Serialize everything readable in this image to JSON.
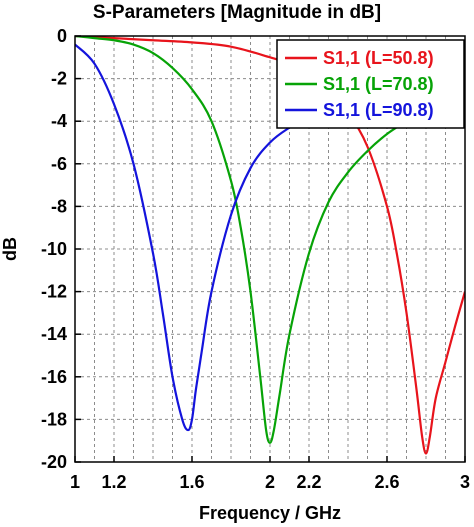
{
  "chart_data": {
    "type": "line",
    "title": "S-Parameters [Magnitude in dB]",
    "xlabel": "Frequency / GHz",
    "ylabel": "dB",
    "xlim": [
      1,
      3
    ],
    "ylim": [
      -20,
      0
    ],
    "x_ticks": [
      {
        "value": 1,
        "label": "1"
      },
      {
        "value": 1.2,
        "label": "1.2"
      },
      {
        "value": 1.6,
        "label": "1.6"
      },
      {
        "value": 2,
        "label": "2"
      },
      {
        "value": 2.2,
        "label": "2.2"
      },
      {
        "value": 2.6,
        "label": "2.6"
      },
      {
        "value": 3,
        "label": "3"
      }
    ],
    "x_grid": [
      1,
      1.1,
      1.2,
      1.3,
      1.4,
      1.5,
      1.6,
      1.7,
      1.8,
      1.9,
      2,
      2.1,
      2.2,
      2.3,
      2.4,
      2.5,
      2.6,
      2.7,
      2.8,
      2.9,
      3
    ],
    "y_ticks": [
      0,
      -2,
      -4,
      -6,
      -8,
      -10,
      -12,
      -14,
      -16,
      -18,
      -20
    ],
    "y_tick_labels": [
      "0",
      "-2",
      "-4",
      "-6",
      "-8",
      "-10",
      "-12",
      "-14",
      "-16",
      "-18",
      "-20"
    ],
    "grid": true,
    "legend_position": "top-right",
    "series": [
      {
        "name": "S1,1 (L=50.8)",
        "color": "#e8141c",
        "x": [
          1.0,
          1.2,
          1.4,
          1.6,
          1.8,
          2.0,
          2.1,
          2.2,
          2.3,
          2.4,
          2.5,
          2.6,
          2.65,
          2.7,
          2.75,
          2.78,
          2.8,
          2.82,
          2.85,
          2.9,
          2.95,
          3.0
        ],
        "y": [
          0,
          -0.1,
          -0.2,
          -0.3,
          -0.5,
          -1.0,
          -1.3,
          -1.8,
          -2.5,
          -3.6,
          -5.2,
          -8.0,
          -10.2,
          -13.0,
          -16.5,
          -18.8,
          -19.6,
          -18.8,
          -17.0,
          -15.3,
          -13.6,
          -12.0
        ]
      },
      {
        "name": "S1,1 (L=70.8)",
        "color": "#07a307",
        "x": [
          1.0,
          1.1,
          1.2,
          1.3,
          1.4,
          1.5,
          1.6,
          1.7,
          1.8,
          1.85,
          1.9,
          1.95,
          1.98,
          2.0,
          2.02,
          2.05,
          2.1,
          2.2,
          2.3,
          2.4,
          2.5,
          2.6,
          2.7
        ],
        "y": [
          0,
          -0.1,
          -0.2,
          -0.4,
          -0.8,
          -1.5,
          -2.5,
          -4.0,
          -6.8,
          -9.0,
          -12.0,
          -16.0,
          -18.5,
          -19.1,
          -18.5,
          -16.8,
          -14.0,
          -10.2,
          -7.8,
          -6.4,
          -5.4,
          -4.6,
          -4.0
        ]
      },
      {
        "name": "S1,1 (L=90.8)",
        "color": "#1414dc",
        "x": [
          1.0,
          1.1,
          1.2,
          1.3,
          1.4,
          1.45,
          1.5,
          1.55,
          1.58,
          1.6,
          1.62,
          1.65,
          1.7,
          1.8,
          1.9,
          2.0,
          2.1,
          2.2,
          2.3
        ],
        "y": [
          -0.4,
          -1.3,
          -3.2,
          -6.0,
          -10.2,
          -13.0,
          -16.0,
          -18.0,
          -18.5,
          -18.0,
          -16.6,
          -14.8,
          -12.0,
          -8.4,
          -6.2,
          -5.0,
          -4.3,
          -3.8,
          -3.4
        ]
      }
    ]
  }
}
